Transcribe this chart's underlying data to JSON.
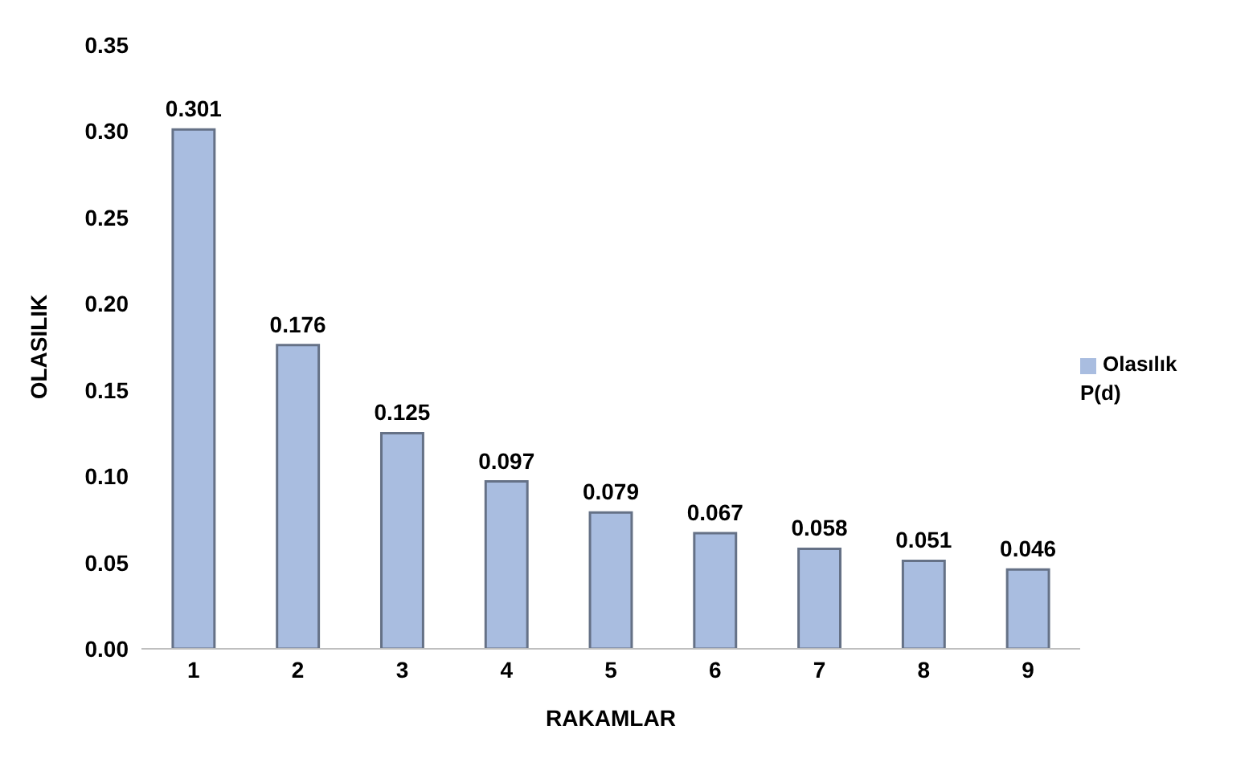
{
  "chart_data": {
    "type": "bar",
    "xlabel": "RAKAMLAR",
    "ylabel": "OLASILIK",
    "categories": [
      "1",
      "2",
      "3",
      "4",
      "5",
      "6",
      "7",
      "8",
      "9"
    ],
    "series": [
      {
        "name": "Olasılık P(d)",
        "color": "#a9bde0",
        "values": [
          0.301,
          0.176,
          0.125,
          0.097,
          0.079,
          0.067,
          0.058,
          0.051,
          0.046
        ]
      }
    ],
    "ylim": [
      0,
      0.35
    ],
    "yticks": [
      {
        "value": 0,
        "label": "0.00"
      },
      {
        "value": 0.05,
        "label": "0.05"
      },
      {
        "value": 0.1,
        "label": "0.10"
      },
      {
        "value": 0.15,
        "label": "0.15"
      },
      {
        "value": 0.2,
        "label": "0.20"
      },
      {
        "value": 0.25,
        "label": "0.25"
      },
      {
        "value": 0.3,
        "label": "0.30"
      },
      {
        "value": 0.35,
        "label": "0.35"
      }
    ],
    "data_labels": true,
    "grid": false,
    "legend": "right"
  }
}
